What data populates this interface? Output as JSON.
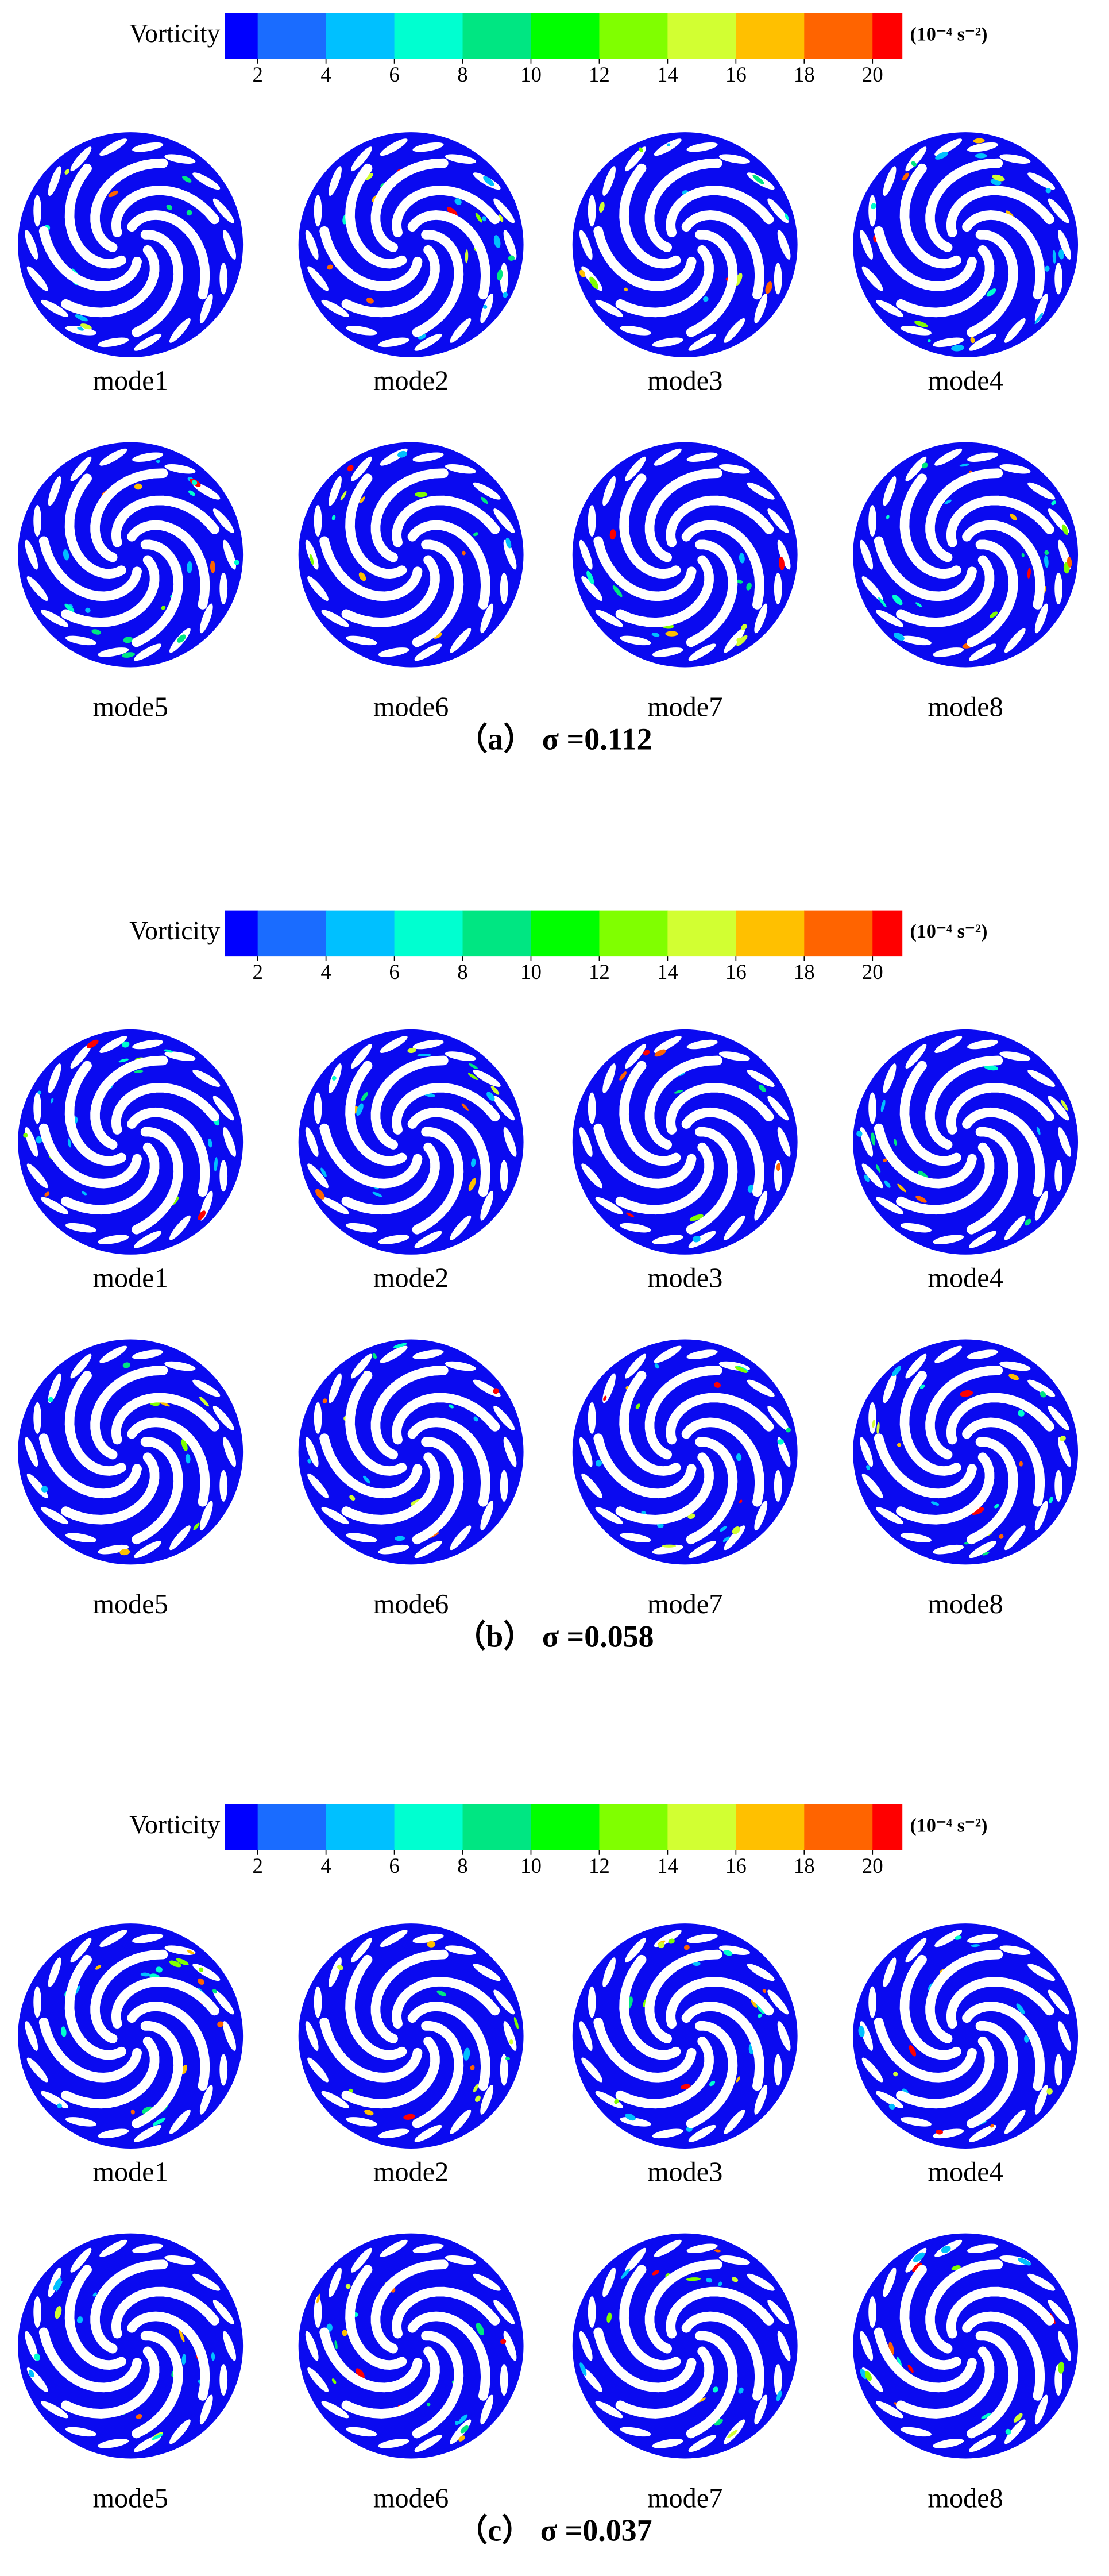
{
  "panels": [
    {
      "colorbar": {
        "label": "Vorticity",
        "unit": "(10⁻⁴ s⁻²)",
        "ticks": [
          2,
          4,
          6,
          8,
          10,
          12,
          14,
          16,
          18,
          20
        ],
        "colors": [
          "#0000ff",
          "#1a6cff",
          "#00c0ff",
          "#00ffd0",
          "#00e682",
          "#00ff00",
          "#80ff00",
          "#d2ff32",
          "#ffc000",
          "#ff6400",
          "#ff0000"
        ]
      },
      "modes": [
        "mode1",
        "mode2",
        "mode3",
        "mode4",
        "mode5",
        "mode6",
        "mode7",
        "mode8"
      ],
      "caption": "（a） σ =0.112"
    },
    {
      "colorbar": {
        "label": "Vorticity",
        "unit": "(10⁻⁴ s⁻²)",
        "ticks": [
          2,
          4,
          6,
          8,
          10,
          12,
          14,
          16,
          18,
          20
        ],
        "colors": [
          "#0000ff",
          "#1a6cff",
          "#00c0ff",
          "#00ffd0",
          "#00e682",
          "#00ff00",
          "#80ff00",
          "#d2ff32",
          "#ffc000",
          "#ff6400",
          "#ff0000"
        ]
      },
      "modes": [
        "mode1",
        "mode2",
        "mode3",
        "mode4",
        "mode5",
        "mode6",
        "mode7",
        "mode8"
      ],
      "caption": "（b） σ =0.058"
    },
    {
      "colorbar": {
        "label": "Vorticity",
        "unit": "(10⁻⁴ s⁻²)",
        "ticks": [
          2,
          4,
          6,
          8,
          10,
          12,
          14,
          16,
          18,
          20
        ],
        "colors": [
          "#0000ff",
          "#1a6cff",
          "#00c0ff",
          "#00ffd0",
          "#00e682",
          "#00ff00",
          "#80ff00",
          "#d2ff32",
          "#ffc000",
          "#ff6400",
          "#ff0000"
        ]
      },
      "modes": [
        "mode1",
        "mode2",
        "mode3",
        "mode4",
        "mode5",
        "mode6",
        "mode7",
        "mode8"
      ],
      "caption": "（c） σ =0.037"
    }
  ]
}
